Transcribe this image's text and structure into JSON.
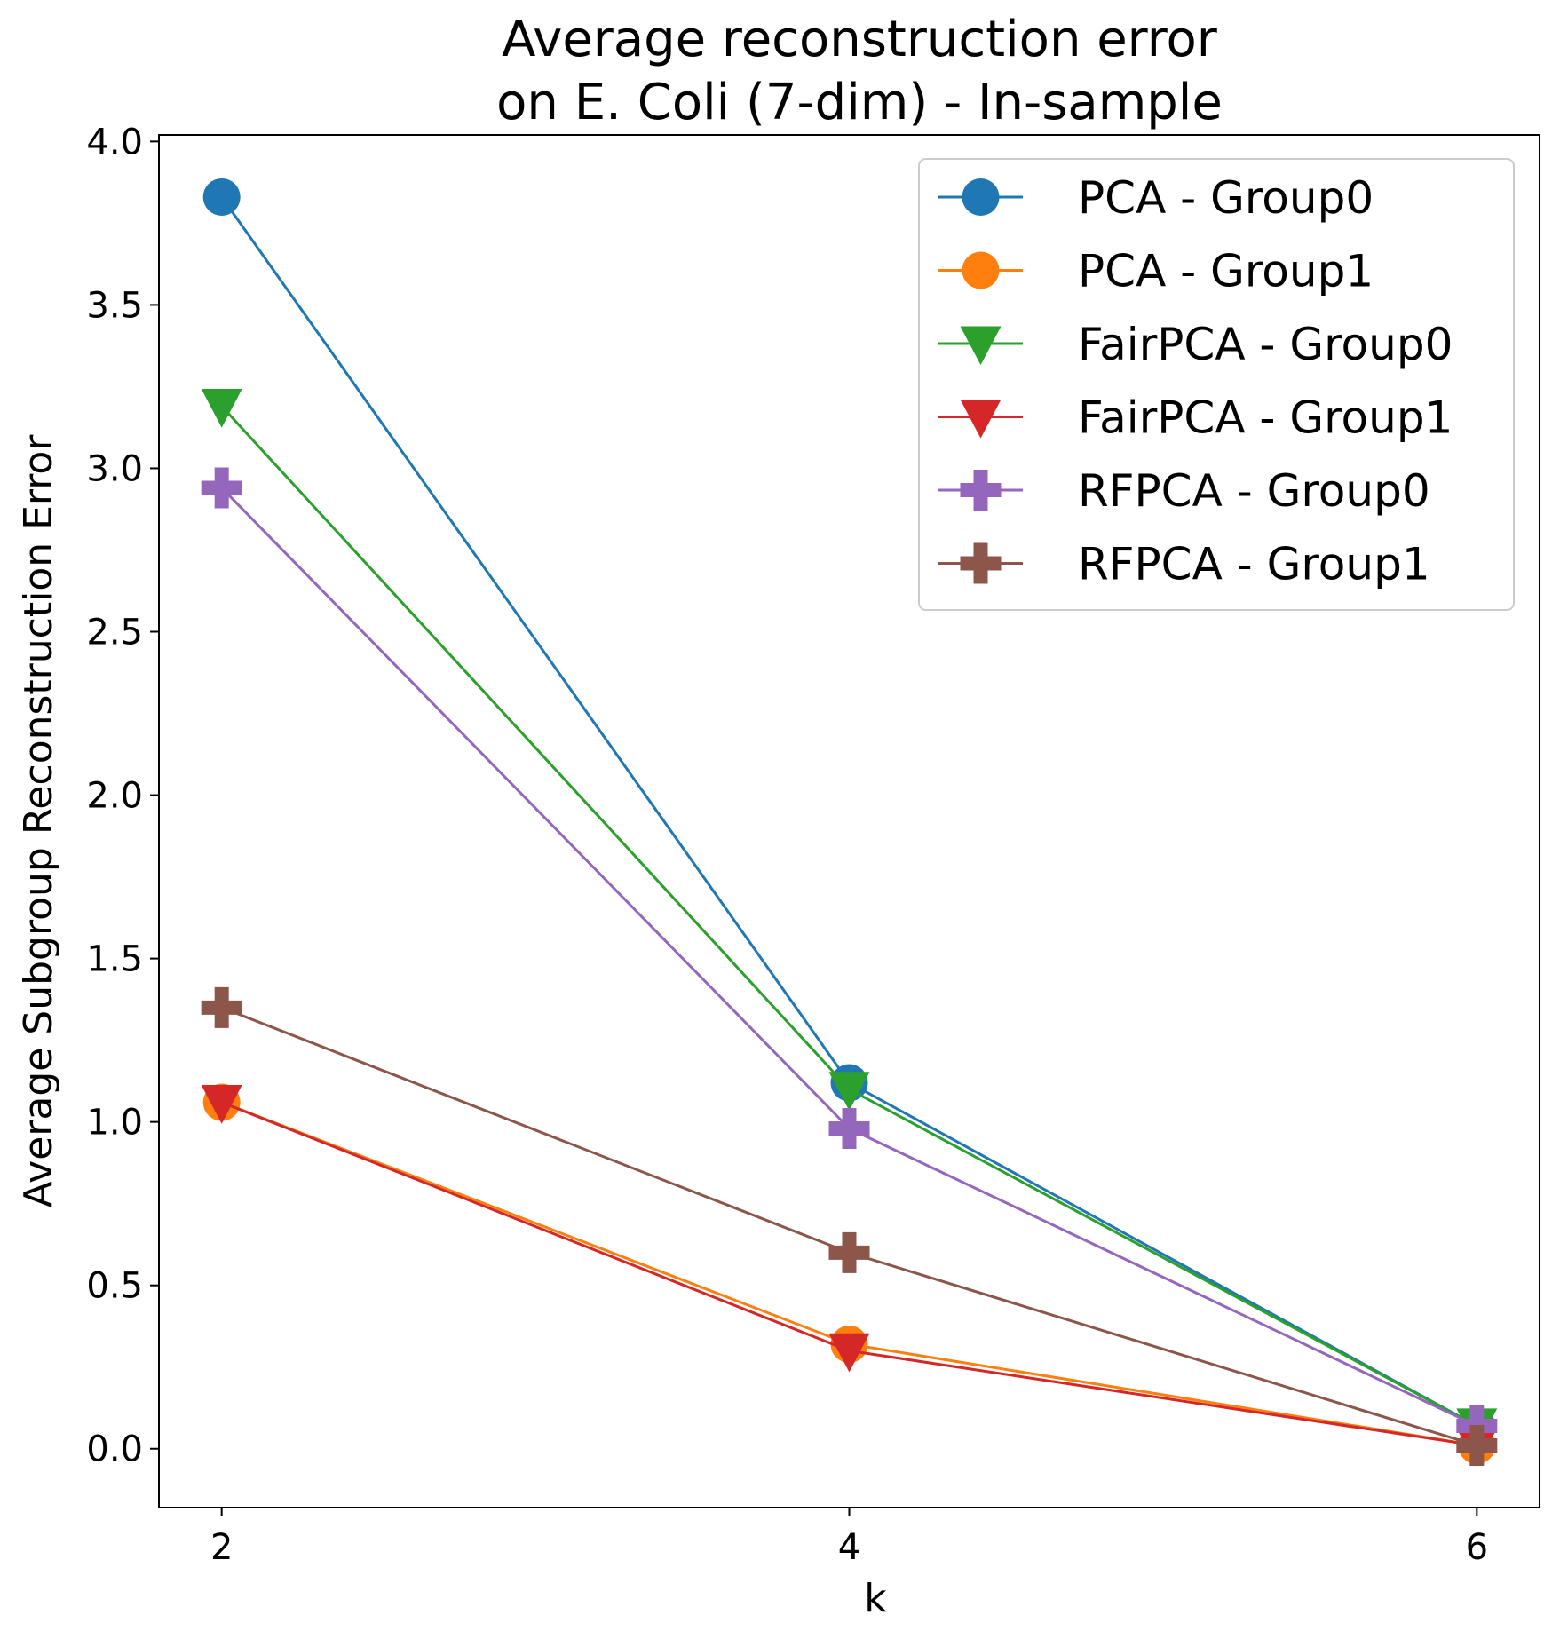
{
  "chart_data": {
    "type": "line",
    "title": [
      "Average reconstruction error",
      "on E. Coli (7-dim) - In-sample"
    ],
    "xlabel": "k",
    "ylabel": "Average Subgroup Reconstruction Error",
    "x": [
      2,
      4,
      6
    ],
    "xticks": [
      "2",
      "4",
      "6"
    ],
    "yticks": [
      "0.0",
      "0.5",
      "1.0",
      "1.5",
      "2.0",
      "2.5",
      "3.0",
      "3.5",
      "4.0"
    ],
    "xlim": [
      1.8,
      6.2
    ],
    "ylim": [
      -0.18,
      4.02
    ],
    "grid": false,
    "legend_position": "top-right",
    "series": [
      {
        "name": "PCA - Group0",
        "values": [
          3.83,
          1.12,
          0.07
        ],
        "color": "#1f77b4",
        "marker": "circle"
      },
      {
        "name": "PCA - Group1",
        "values": [
          1.06,
          0.32,
          0.01
        ],
        "color": "#ff7f0e",
        "marker": "circle"
      },
      {
        "name": "FairPCA - Group0",
        "values": [
          3.19,
          1.1,
          0.07
        ],
        "color": "#2ca02c",
        "marker": "triangle-down"
      },
      {
        "name": "FairPCA - Group1",
        "values": [
          1.06,
          0.3,
          0.01
        ],
        "color": "#d62728",
        "marker": "triangle-down"
      },
      {
        "name": "RFPCA - Group0",
        "values": [
          2.94,
          0.98,
          0.07
        ],
        "color": "#9467bd",
        "marker": "plus"
      },
      {
        "name": "RFPCA - Group1",
        "values": [
          1.35,
          0.6,
          0.01
        ],
        "color": "#8c564b",
        "marker": "plus"
      }
    ]
  }
}
